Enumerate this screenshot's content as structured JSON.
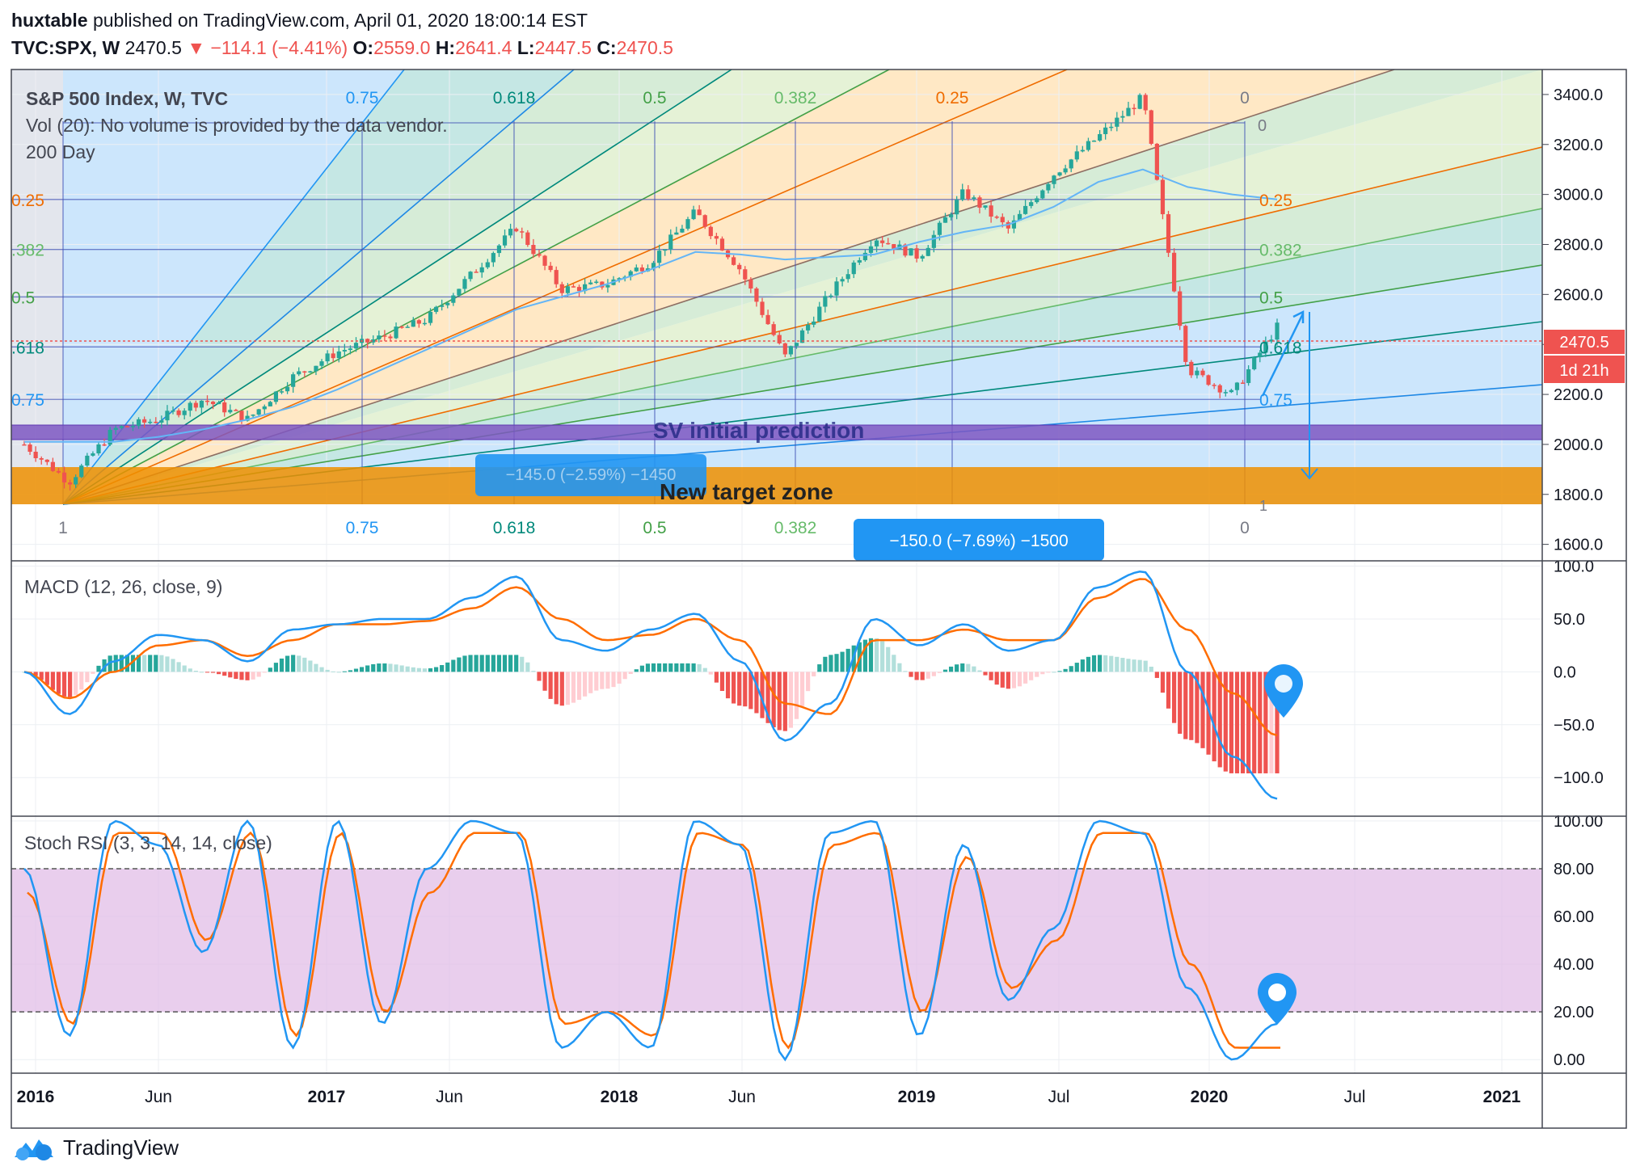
{
  "header": {
    "line1": {
      "user": "huxtable",
      "text": "published on TradingView.com, April 01, 2020 18:00:14 EST"
    },
    "line2": {
      "symbol": "TVC:SPX, W",
      "price": "2470.5",
      "arrow": "▼",
      "change": "−114.1 (−4.41%)",
      "o_label": "O:",
      "o": "2559.0",
      "h_label": "H:",
      "h": "2641.4",
      "l_label": "L:",
      "l": "2447.5",
      "c_label": "C:",
      "c": "2470.5"
    }
  },
  "main_pane": {
    "legend": [
      "S&P 500 Index, W, TVC",
      "Vol (20): No volume is provided by the data vendor.",
      "200 Day"
    ],
    "price_label": "2470.5",
    "time_label": "1d 21h",
    "price_ticks": [
      "3400.0",
      "3200.0",
      "3000.0",
      "2800.0",
      "2600.0",
      "2400.0",
      "2200.0",
      "2000.0",
      "1800.0",
      "1600.0"
    ],
    "fan_labels": [
      "0.75",
      "0.618",
      "0.5",
      "0.382",
      "0.25",
      "0"
    ],
    "level_labels": [
      "0.25",
      ".382",
      "0.5",
      ".618",
      "0.75"
    ],
    "corner_labels": [
      "0",
      "1",
      "1"
    ],
    "right_fib_labels": [
      "0",
      "0.25",
      "0.382",
      "0.5",
      "0.618",
      "0.75",
      "1"
    ],
    "zone_sv": "SV initial prediction",
    "zone_new": "New target zone",
    "measure_label_top": "−145.0 (−2.59%) −1450",
    "measure_label_bottom": "−150.0 (−7.69%) −1500",
    "bottom_fan_labels": [
      "1",
      "0.75",
      "0.618",
      "0.5",
      "0.382",
      "0.25",
      "0"
    ]
  },
  "macd_pane": {
    "legend": "MACD (12, 26, close, 9)",
    "ticks": [
      "100.0",
      "50.0",
      "0.0",
      "−50.0",
      "−100.0"
    ]
  },
  "stoch_pane": {
    "legend": "Stoch RSI (3, 3, 14, 14, close)",
    "ticks": [
      "100.00",
      "80.00",
      "60.00",
      "40.00",
      "20.00",
      "0.00"
    ]
  },
  "time_axis": [
    "2016",
    "Jun",
    "2017",
    "Jun",
    "2018",
    "Jun",
    "2019",
    "Jul",
    "2020",
    "Jul",
    "2021"
  ],
  "footer": {
    "brand": "TradingView"
  },
  "colors": {
    "up": "#26a69a",
    "down": "#ef5350",
    "macd": "#2196f3",
    "signal": "#ff6d00",
    "stoch_band": "#e1bee7"
  },
  "chart_data": [
    {
      "type": "line",
      "title": "S&P 500 Index, W, TVC",
      "xlabel": "",
      "ylabel": "",
      "x": [
        "2016-01",
        "2016-02",
        "2016-04",
        "2016-06",
        "2016-08",
        "2016-11",
        "2017-01",
        "2017-03",
        "2017-06",
        "2017-09",
        "2017-12",
        "2018-01",
        "2018-02",
        "2018-04",
        "2018-06",
        "2018-09",
        "2018-10",
        "2018-12",
        "2019-01",
        "2019-03",
        "2019-05",
        "2019-07",
        "2019-08",
        "2019-10",
        "2019-12",
        "2020-02",
        "2020-03",
        "2020-03b",
        "2020-04"
      ],
      "series": [
        {
          "name": "",
          "values": [
            2000,
            1850,
            2060,
            2100,
            2180,
            2100,
            2270,
            2370,
            2430,
            2500,
            2680,
            2870,
            2620,
            2640,
            2730,
            2930,
            2700,
            2350,
            2600,
            2830,
            2750,
            3010,
            2860,
            3080,
            3230,
            3390,
            2300,
            2200,
            2470
          ]
        },
        {
          "name": "200 Day",
          "values": [
            2010,
            2010,
            2010,
            2030,
            2060,
            2100,
            2150,
            2220,
            2300,
            2380,
            2460,
            2540,
            2590,
            2640,
            2700,
            2770,
            2760,
            2740,
            2750,
            2760,
            2810,
            2850,
            2880,
            2950,
            3050,
            3100,
            3030,
            3000,
            2980
          ]
        }
      ],
      "ylim": [
        1560,
        3500
      ],
      "horizontal_levels": [
        2980,
        2780,
        2590,
        2390,
        2180
      ],
      "current_price": 2470.5
    },
    {
      "type": "line",
      "title": "MACD (12, 26, close, 9)",
      "series": [
        {
          "name": "",
          "values": [
            0,
            -40,
            10,
            35,
            30,
            10,
            40,
            45,
            50,
            50,
            70,
            90,
            30,
            20,
            40,
            55,
            10,
            -65,
            -30,
            50,
            25,
            45,
            20,
            30,
            80,
            95,
            0,
            -80,
            -120
          ]
        },
        {
          "name": "",
          "values": [
            0,
            -25,
            0,
            25,
            30,
            15,
            30,
            45,
            45,
            48,
            60,
            80,
            50,
            30,
            35,
            50,
            30,
            -30,
            -40,
            30,
            30,
            40,
            30,
            30,
            70,
            88,
            40,
            -20,
            -60
          ]
        }
      ],
      "ylim": [
        -135,
        105
      ]
    },
    {
      "type": "line",
      "title": "Stoch RSI (3, 3, 14, 14, close)",
      "series": [
        {
          "name": "",
          "values": [
            80,
            10,
            100,
            90,
            45,
            100,
            5,
            100,
            15,
            80,
            100,
            95,
            5,
            20,
            5,
            100,
            90,
            0,
            95,
            100,
            10,
            90,
            25,
            55,
            100,
            95,
            30,
            0,
            15
          ]
        },
        {
          "name": "",
          "values": [
            70,
            15,
            95,
            95,
            50,
            95,
            10,
            95,
            20,
            70,
            95,
            95,
            15,
            20,
            10,
            95,
            90,
            5,
            90,
            95,
            20,
            85,
            30,
            50,
            95,
            95,
            40,
            5,
            5
          ]
        }
      ],
      "ylim": [
        -5,
        102
      ],
      "bands": [
        20,
        80
      ]
    }
  ]
}
